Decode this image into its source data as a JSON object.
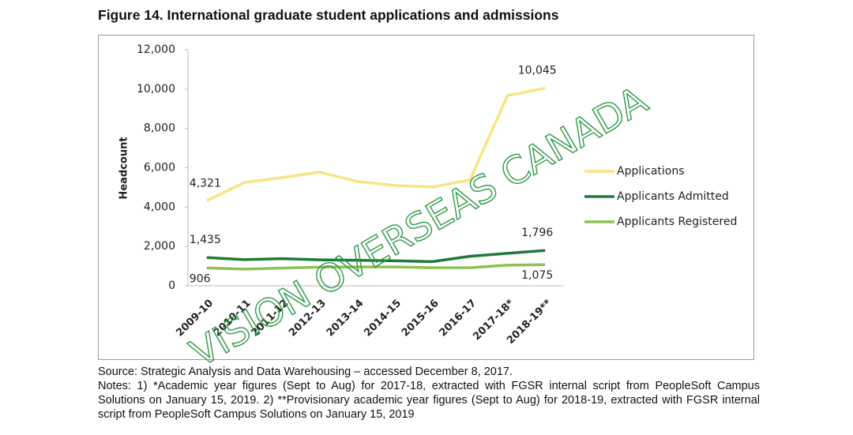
{
  "chart_data": {
    "type": "line",
    "title": "Figure 14. International graduate student applications and admissions",
    "y_label": "Headcount",
    "categories": [
      "2009-10",
      "2010-11",
      "2011-12",
      "2012-13",
      "2013-14",
      "2014-15",
      "2015-16",
      "2016-17",
      "2017-18*",
      "2018-19**"
    ],
    "series": [
      {
        "name": "Applications",
        "color": "#f7e582",
        "values": [
          4321,
          5250,
          5500,
          5780,
          5300,
          5100,
          5020,
          5380,
          9670,
          10045
        ],
        "value_labels": [
          "4,321",
          null,
          null,
          null,
          null,
          null,
          null,
          null,
          null,
          "10,045"
        ]
      },
      {
        "name": "Applicants Admitted",
        "color": "#1d7a3a",
        "values": [
          1435,
          1330,
          1380,
          1320,
          1300,
          1270,
          1230,
          1500,
          1650,
          1796
        ],
        "value_labels": [
          "1,435",
          null,
          null,
          null,
          null,
          null,
          null,
          null,
          null,
          "1,796"
        ]
      },
      {
        "name": "Applicants Registered",
        "color": "#8fbf55",
        "values": [
          906,
          850,
          900,
          950,
          960,
          960,
          920,
          920,
          1050,
          1075
        ],
        "value_labels": [
          "906",
          null,
          null,
          null,
          null,
          null,
          null,
          null,
          null,
          "1,075"
        ]
      }
    ],
    "ylim": [
      0,
      12000
    ],
    "yticks": [
      0,
      {
        "value": 2000,
        "label": "2,000"
      },
      {
        "value": 4000,
        "label": "4,000"
      },
      {
        "value": 6000,
        "label": "6,000"
      },
      {
        "value": 8000,
        "label": "8,000"
      },
      {
        "value": 10000,
        "label": "10,000"
      },
      {
        "value": 12000,
        "label": "12,000"
      }
    ],
    "grid": false,
    "legend": "right",
    "watermark": "VISION OVERSEAS CANADA",
    "source": "Source: Strategic Analysis and Data Warehousing – accessed December 8, 2017.",
    "notes": "Notes: 1) *Academic year figures (Sept to Aug) for 2017-18, extracted with FGSR internal script from PeopleSoft Campus Solutions on January 15, 2019. 2) **Provisionary academic year figures (Sept to Aug) for 2018-19, extracted with FGSR internal script from PeopleSoft Campus Solutions on January 15, 2019"
  }
}
